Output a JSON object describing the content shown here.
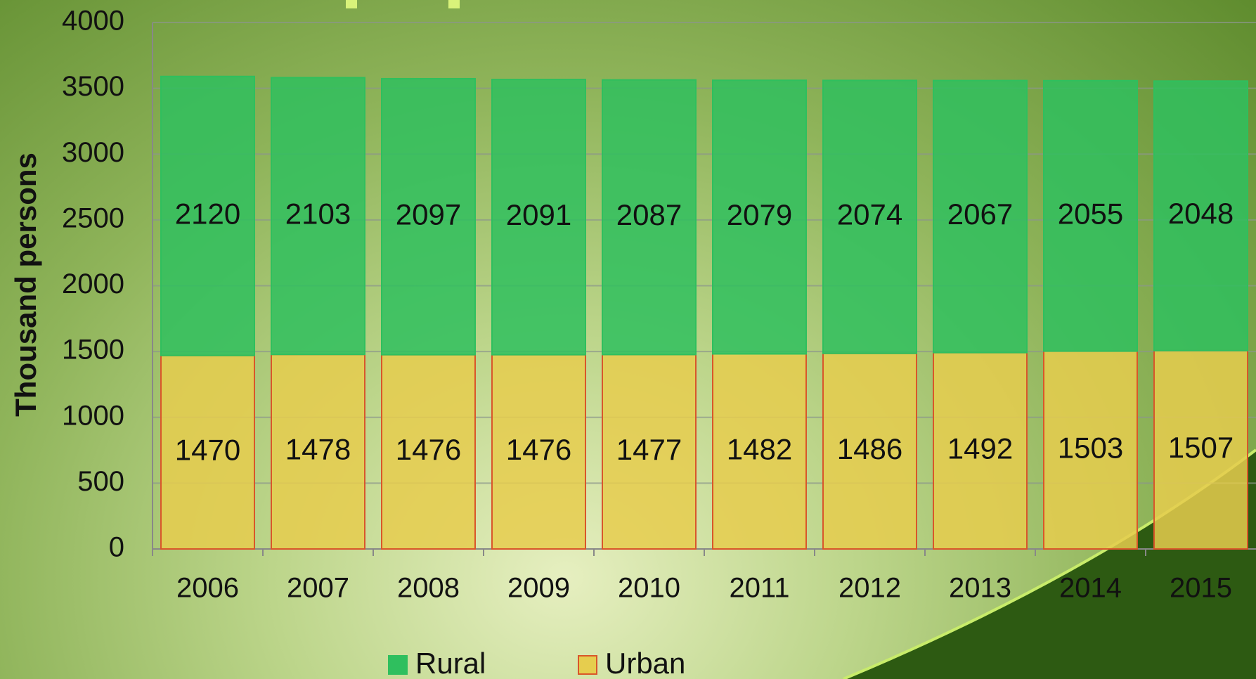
{
  "chart_data": {
    "type": "stacked_bar",
    "y_label": "Thousand persons",
    "categories": [
      "2006",
      "2007",
      "2008",
      "2009",
      "2010",
      "2011",
      "2012",
      "2013",
      "2014",
      "2015"
    ],
    "series": [
      {
        "name": "Rural",
        "color": "#2fbf5e",
        "values": [
          2120,
          2103,
          2097,
          2091,
          2087,
          2079,
          2074,
          2067,
          2055,
          2048
        ]
      },
      {
        "name": "Urban",
        "color": "#e6cd4e",
        "values": [
          1470,
          1478,
          1476,
          1476,
          1477,
          1482,
          1486,
          1492,
          1503,
          1507
        ]
      }
    ],
    "ylim": [
      0,
      4000
    ],
    "yticks": [
      0,
      500,
      1000,
      1500,
      2000,
      2500,
      3000,
      3500,
      4000
    ],
    "grid": true,
    "legend": "bottom"
  }
}
